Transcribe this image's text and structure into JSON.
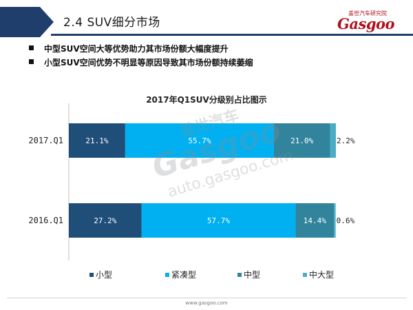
{
  "header": {
    "section_title": "2.4  SUV细分市场"
  },
  "logo": {
    "cn": "盖世汽车研究院",
    "en": "Gasgoo"
  },
  "bullets": [
    "中型SUV空间大等优势助力其市场份额大幅度提升",
    "小型SUV空间优势不明显等原因导致其市场份额持续萎缩"
  ],
  "watermark": {
    "brand": "Gasgoo",
    "cn": "盖世汽车",
    "url": "auto.gasgoo.com"
  },
  "footer": {
    "url": "www.gasgoo.com"
  },
  "colors": {
    "header_band": "#1f3e6b",
    "small": "#1f4e79",
    "compact": "#00b0f0",
    "medium": "#31849b",
    "large": "#4bacc6"
  },
  "chart_data": {
    "type": "bar",
    "orientation": "horizontal",
    "stacked": true,
    "percent": true,
    "title": "2017年Q1SUV分级别占比图示",
    "categories": [
      "2017.Q1",
      "2016.Q1"
    ],
    "series": [
      {
        "name": "小型",
        "values": [
          21.1,
          27.2
        ],
        "labels": [
          "21.1%",
          "27.2%"
        ],
        "color": "#1f4e79"
      },
      {
        "name": "紧凑型",
        "values": [
          55.7,
          57.7
        ],
        "labels": [
          "55.7%",
          "57.7%"
        ],
        "color": "#00b0f0"
      },
      {
        "name": "中型",
        "values": [
          21.0,
          14.4
        ],
        "labels": [
          "21.0%",
          "14.4%"
        ],
        "color": "#31849b"
      },
      {
        "name": "中大型",
        "values": [
          2.2,
          0.6
        ],
        "labels": [
          "2.2%",
          "0.6%"
        ],
        "color": "#4bacc6"
      }
    ],
    "xlim": [
      0,
      100
    ],
    "legend": "bottom",
    "grid": false
  }
}
